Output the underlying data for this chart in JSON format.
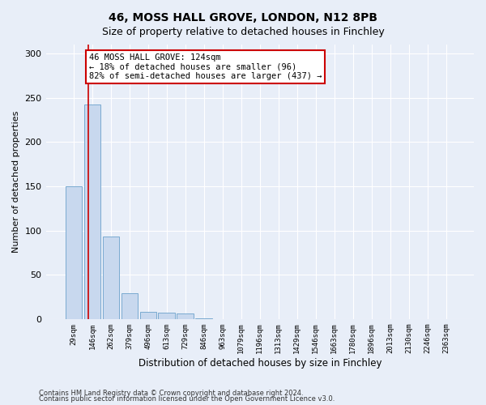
{
  "title": "46, MOSS HALL GROVE, LONDON, N12 8PB",
  "subtitle": "Size of property relative to detached houses in Finchley",
  "xlabel": "Distribution of detached houses by size in Finchley",
  "ylabel": "Number of detached properties",
  "categories": [
    "29sqm",
    "146sqm",
    "262sqm",
    "379sqm",
    "496sqm",
    "613sqm",
    "729sqm",
    "846sqm",
    "963sqm",
    "1079sqm",
    "1196sqm",
    "1313sqm",
    "1429sqm",
    "1546sqm",
    "1663sqm",
    "1780sqm",
    "1896sqm",
    "2013sqm",
    "2130sqm",
    "2246sqm",
    "2363sqm"
  ],
  "values": [
    150,
    242,
    93,
    29,
    8,
    7,
    6,
    1,
    0,
    0,
    0,
    0,
    0,
    0,
    0,
    0,
    0,
    0,
    0,
    0,
    0
  ],
  "bar_color": "#c8d8ee",
  "bar_edge_color": "#7aaad0",
  "background_color": "#e8eef8",
  "grid_color": "#ffffff",
  "vline_color": "#cc0000",
  "vline_x": 0.78,
  "annotation_text": "46 MOSS HALL GROVE: 124sqm\n← 18% of detached houses are smaller (96)\n82% of semi-detached houses are larger (437) →",
  "annotation_box_facecolor": "#ffffff",
  "annotation_box_edgecolor": "#cc0000",
  "ylim": [
    0,
    310
  ],
  "yticks": [
    0,
    50,
    100,
    150,
    200,
    250,
    300
  ],
  "title_fontsize": 10,
  "subtitle_fontsize": 9,
  "footer1": "Contains HM Land Registry data © Crown copyright and database right 2024.",
  "footer2": "Contains public sector information licensed under the Open Government Licence v3.0."
}
